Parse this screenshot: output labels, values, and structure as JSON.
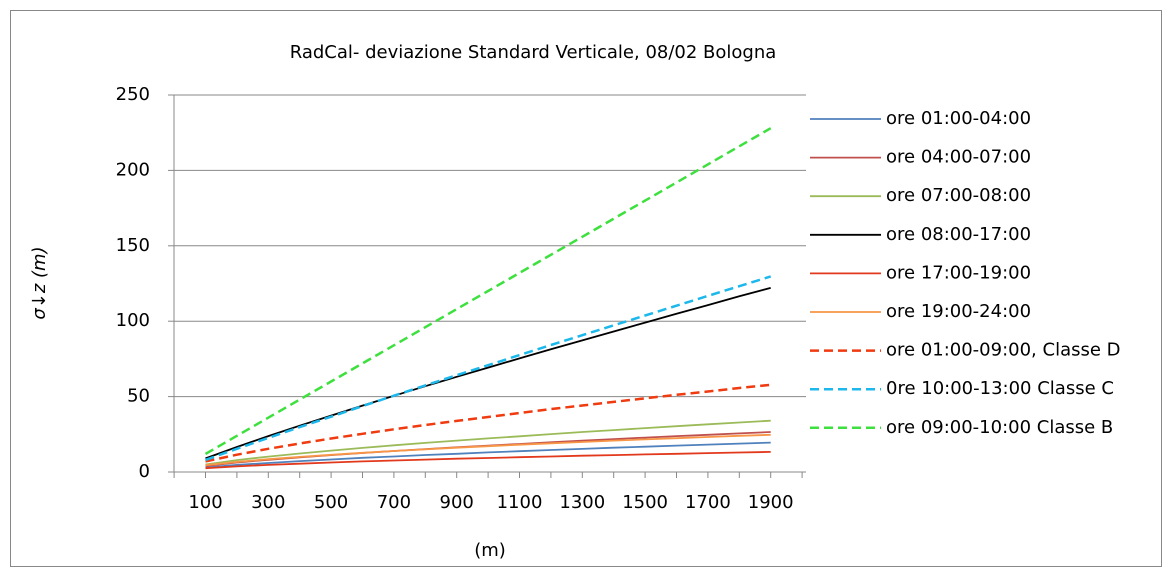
{
  "chart_data": {
    "type": "line",
    "title": "RadCal- deviazione Standard Verticale, 08/02 Bologna",
    "y_label": "σ↓z (m)",
    "x_label": "(m)",
    "categories": [
      "100",
      null,
      "300",
      null,
      "500",
      null,
      "700",
      null,
      "900",
      null,
      "1100",
      null,
      "1300",
      null,
      "1500",
      null,
      "1700",
      null,
      "1900"
    ],
    "ylim": [
      0,
      250
    ],
    "yticks": [
      0,
      50,
      100,
      150,
      200,
      250
    ],
    "grid": true,
    "legend": "right",
    "series": [
      {
        "name": "ore 01:00-04:00",
        "color": "#4f81bd",
        "line_style": "solid",
        "values": [
          3,
          4.7,
          6,
          7.2,
          8.3,
          9.4,
          10.3,
          11.3,
          12.1,
          13,
          13.8,
          14.6,
          15.3,
          16.1,
          16.8,
          17.5,
          18.2,
          18.8,
          19.5
        ]
      },
      {
        "name": "ore 04:00-07:00",
        "color": "#c0504d",
        "line_style": "solid",
        "values": [
          4,
          6.3,
          8.1,
          9.7,
          11.2,
          12.6,
          13.9,
          15.2,
          16.4,
          17.5,
          18.6,
          19.7,
          20.8,
          21.8,
          22.8,
          23.8,
          24.7,
          25.6,
          26.5
        ]
      },
      {
        "name": "ore 07:00-08:00",
        "color": "#9bbb59",
        "line_style": "solid",
        "values": [
          5,
          7.9,
          10.2,
          12.3,
          14.2,
          16,
          17.7,
          19.3,
          20.8,
          22.3,
          23.7,
          25.1,
          26.5,
          27.8,
          29.1,
          30.4,
          31.6,
          32.8,
          34
        ]
      },
      {
        "name": "ore 08:00-17:00",
        "color": "#000000",
        "line_style": "solid",
        "values": [
          9,
          16.6,
          23.8,
          30.7,
          37.4,
          44,
          50.5,
          56.9,
          63.1,
          69.2,
          75.3,
          81.4,
          87.3,
          93.2,
          99.1,
          104.9,
          110.7,
          116.5,
          122.1
        ]
      },
      {
        "name": "ore 17:00-19:00",
        "color": "#e2391d",
        "line_style": "solid",
        "values": [
          2.5,
          3.7,
          4.7,
          5.5,
          6.3,
          7,
          7.6,
          8.2,
          8.8,
          9.3,
          9.8,
          10.3,
          10.8,
          11.2,
          11.7,
          12.1,
          12.5,
          12.9,
          13.3
        ]
      },
      {
        "name": "ore 19:00-24:00",
        "color": "#f79646",
        "line_style": "solid",
        "values": [
          4.5,
          6.7,
          8.5,
          10,
          11.4,
          12.7,
          13.9,
          15,
          16.1,
          17.1,
          18.1,
          19,
          19.9,
          20.8,
          21.6,
          22.4,
          23.2,
          24,
          24.7
        ]
      },
      {
        "name": "ore 01:00-09:00, Classe D",
        "color": "#f03a10",
        "line_style": "dashed",
        "values": [
          7,
          11.5,
          15.4,
          18.9,
          22.2,
          25.3,
          28.3,
          31.2,
          33.9,
          36.5,
          39.1,
          41.7,
          44.1,
          46.5,
          48.9,
          51.2,
          53.4,
          55.7,
          57.8
        ]
      },
      {
        "name": "0re 10:00-13:00 Classe C",
        "color": "#1cb8ec",
        "line_style": "dashed",
        "values": [
          8,
          15.4,
          22.6,
          29.8,
          36.7,
          43.7,
          50.6,
          57.4,
          64.2,
          70.8,
          77.5,
          84.2,
          90.7,
          97.3,
          103.8,
          110.3,
          116.8,
          123.2,
          129.7
        ]
      },
      {
        "name": "ore 09:00-10:00 Classe B",
        "color": "#3de03d",
        "line_style": "dashed",
        "values": [
          12,
          24,
          36,
          48,
          60,
          72,
          84,
          96,
          108,
          120,
          132,
          144,
          156,
          168,
          180,
          192,
          204,
          216,
          228
        ]
      }
    ]
  }
}
